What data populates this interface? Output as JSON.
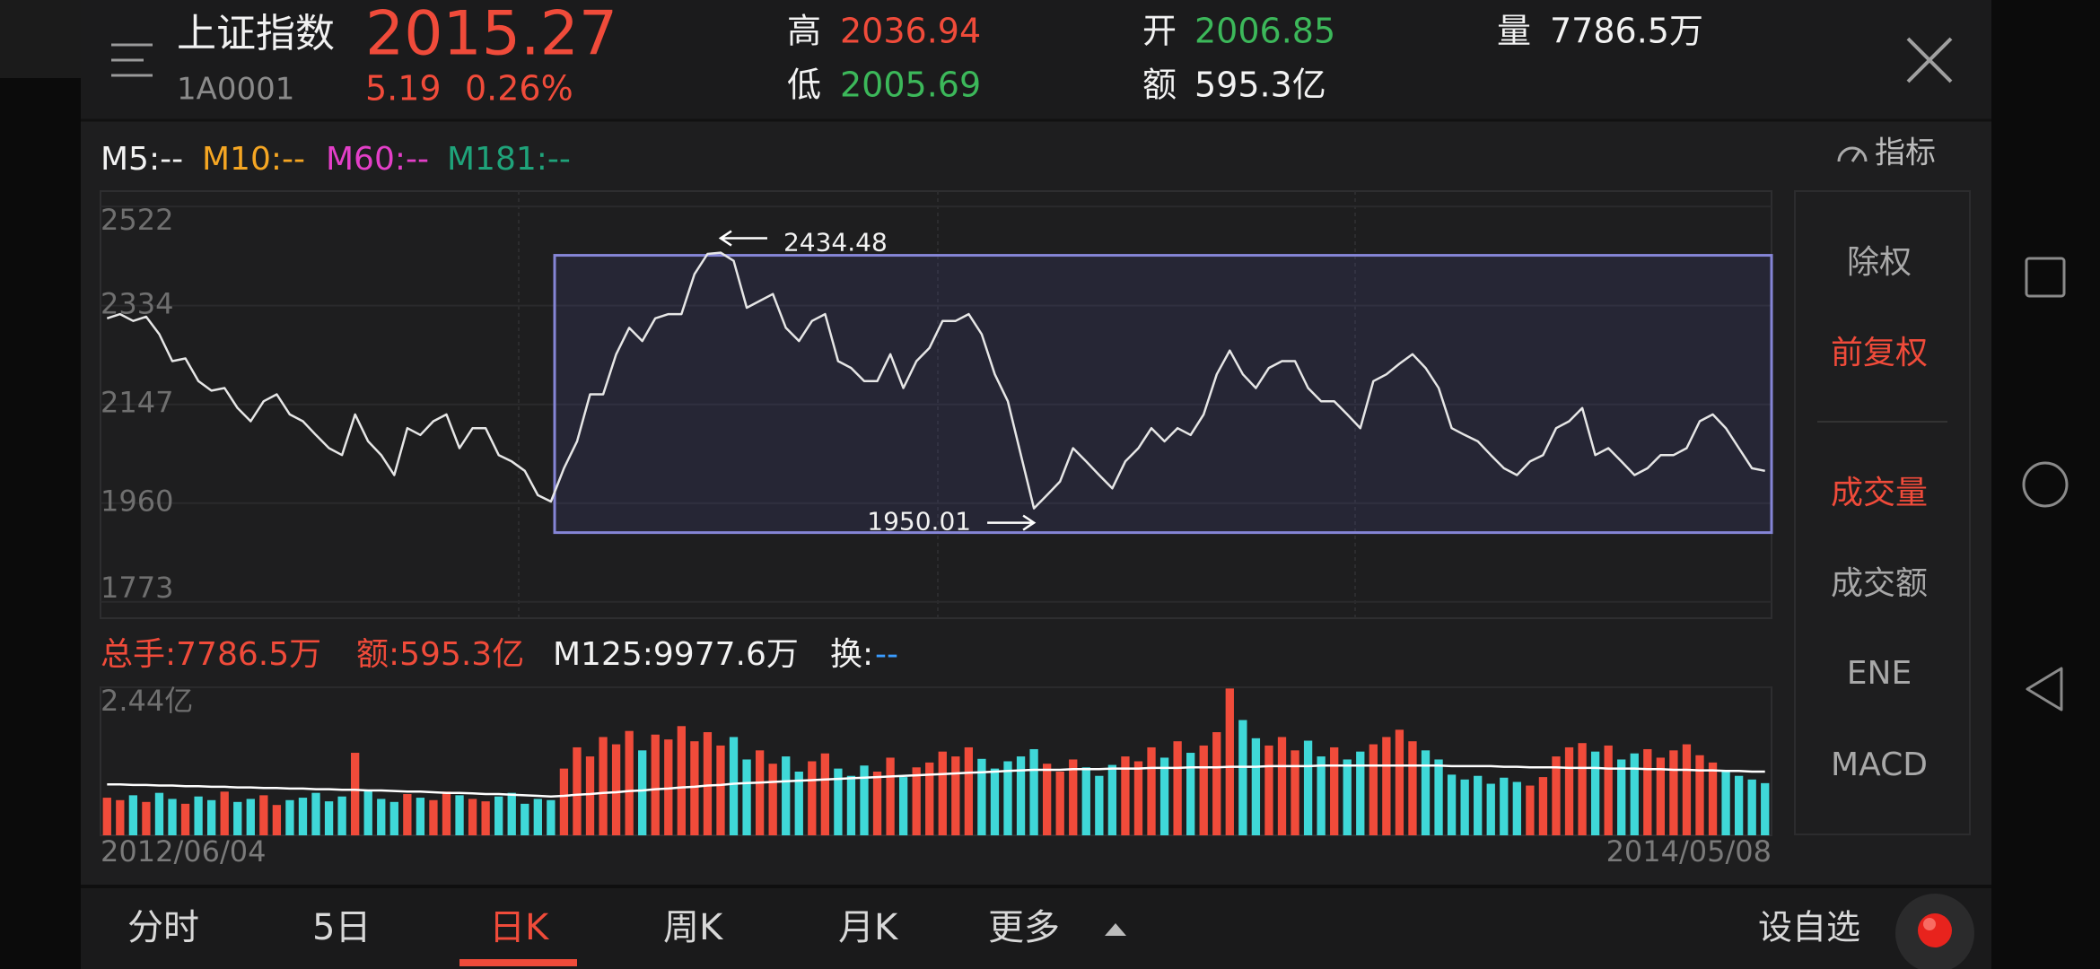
{
  "header": {
    "name": "上证指数",
    "code": "1A0001",
    "price": "2015.27",
    "change": "5.19",
    "change_pct": "0.26%",
    "stats": [
      {
        "label": "高",
        "value": "2036.94"
      },
      {
        "label": "低",
        "value": "2005.69"
      },
      {
        "label": "开",
        "value": "2006.85"
      },
      {
        "label": "额",
        "value": "595.3亿"
      },
      {
        "label": "量",
        "value": "7786.5万"
      }
    ]
  },
  "indicators": [
    "M5:--",
    "M10:--",
    "M60:--",
    "M181:--"
  ],
  "indicator_button": "指标",
  "volume_info": [
    "总手:7786.5万",
    "额:595.3亿",
    "M125:9977.6万",
    "换:",
    "--"
  ],
  "side_menu": [
    "除权",
    "前复权",
    "成交量",
    "成交额",
    "ENE",
    "MACD"
  ],
  "tabs": [
    "分时",
    "5日",
    "日K",
    "周K",
    "月K",
    "更多"
  ],
  "add_watch": "设自选",
  "chart_data": [
    {
      "type": "line",
      "color": "#e6e6e6",
      "ylim": [
        1742,
        2551
      ],
      "yticks": [
        2522,
        2334,
        2147,
        1960,
        1773
      ],
      "grid": true,
      "high_mark": 2434.48,
      "low_mark": 1950.01,
      "values": [
        2310,
        2318,
        2305,
        2313,
        2280,
        2229,
        2234,
        2191,
        2173,
        2178,
        2140,
        2115,
        2153,
        2166,
        2128,
        2115,
        2089,
        2064,
        2051,
        2128,
        2077,
        2051,
        2013,
        2102,
        2089,
        2115,
        2128,
        2064,
        2102,
        2102,
        2051,
        2039,
        2021,
        1975,
        1963,
        2026,
        2077,
        2166,
        2166,
        2242,
        2292,
        2267,
        2310,
        2318,
        2318,
        2394,
        2432,
        2434.48,
        2419,
        2330,
        2343,
        2356,
        2292,
        2267,
        2305,
        2318,
        2229,
        2216,
        2191,
        2191,
        2242,
        2178,
        2229,
        2254,
        2305,
        2305,
        2318,
        2280,
        2204,
        2153,
        2051,
        1950.01,
        1975,
        2001,
        2064,
        2039,
        2013,
        1988,
        2039,
        2064,
        2102,
        2077,
        2102,
        2089,
        2128,
        2204,
        2249,
        2204,
        2178,
        2216,
        2229,
        2229,
        2178,
        2153,
        2153,
        2128,
        2102,
        2191,
        2204,
        2224,
        2242,
        2216,
        2178,
        2102,
        2089,
        2077,
        2051,
        2026,
        2013,
        2039,
        2051,
        2102,
        2115,
        2140,
        2051,
        2064,
        2039,
        2013,
        2026,
        2051,
        2051,
        2064,
        2115,
        2128,
        2102,
        2064,
        2026,
        2021
      ]
    },
    {
      "type": "bar",
      "up_color": "#f04b3a",
      "down_color": "#3fd8d8",
      "ylim": [
        0,
        2.44
      ],
      "yticks": [
        {
          "value": 2.44,
          "label": "2.44亿"
        }
      ],
      "categories": [
        "2012/06/04",
        null,
        null,
        null,
        null,
        null,
        null,
        null,
        null,
        null,
        null,
        null,
        null,
        null,
        null,
        null,
        null,
        null,
        null,
        null,
        null,
        null,
        null,
        null,
        null,
        null,
        null,
        null,
        null,
        null,
        null,
        null,
        null,
        null,
        null,
        null,
        null,
        null,
        null,
        null,
        null,
        null,
        null,
        null,
        null,
        null,
        null,
        null,
        null,
        null,
        null,
        null,
        null,
        null,
        null,
        null,
        null,
        null,
        null,
        null,
        null,
        null,
        null,
        null,
        null,
        null,
        null,
        null,
        null,
        null,
        null,
        null,
        null,
        null,
        null,
        null,
        null,
        null,
        null,
        null,
        null,
        null,
        null,
        null,
        null,
        null,
        null,
        null,
        null,
        null,
        null,
        null,
        null,
        null,
        null,
        null,
        null,
        null,
        null,
        null,
        null,
        null,
        null,
        null,
        null,
        null,
        null,
        null,
        null,
        null,
        null,
        null,
        null,
        null,
        null,
        null,
        null,
        null,
        null,
        null,
        null,
        null,
        null,
        null,
        null,
        null,
        null,
        "2014/05/08"
      ],
      "values": [
        0.62,
        0.58,
        0.66,
        0.55,
        0.7,
        0.6,
        0.52,
        0.64,
        0.58,
        0.72,
        0.55,
        0.6,
        0.66,
        0.5,
        0.58,
        0.62,
        0.7,
        0.56,
        0.64,
        1.36,
        0.74,
        0.6,
        0.55,
        0.68,
        0.62,
        0.58,
        0.72,
        0.66,
        0.6,
        0.56,
        0.64,
        0.7,
        0.52,
        0.6,
        0.58,
        1.1,
        1.45,
        1.3,
        1.62,
        1.5,
        1.72,
        1.4,
        1.66,
        1.58,
        1.8,
        1.55,
        1.7,
        1.48,
        1.62,
        1.25,
        1.4,
        1.18,
        1.3,
        1.05,
        1.22,
        1.35,
        1.1,
        0.98,
        1.15,
        1.05,
        1.28,
        0.96,
        1.12,
        1.2,
        1.38,
        1.3,
        1.45,
        1.26,
        1.1,
        1.22,
        1.3,
        1.42,
        1.18,
        1.05,
        1.25,
        1.12,
        0.98,
        1.16,
        1.3,
        1.22,
        1.45,
        1.28,
        1.55,
        1.36,
        1.48,
        1.7,
        2.42,
        1.9,
        1.6,
        1.48,
        1.62,
        1.4,
        1.56,
        1.3,
        1.45,
        1.25,
        1.38,
        1.5,
        1.62,
        1.74,
        1.55,
        1.4,
        1.25,
        1.0,
        0.92,
        0.98,
        0.85,
        0.95,
        0.88,
        0.82,
        0.96,
        1.3,
        1.45,
        1.52,
        1.38,
        1.48,
        1.25,
        1.35,
        1.42,
        1.28,
        1.4,
        1.5,
        1.32,
        1.2,
        1.05,
        0.98,
        0.92,
        0.86
      ],
      "ma": {
        "color": "#ffffff",
        "values": [
          0.84,
          0.84,
          0.83,
          0.83,
          0.82,
          0.82,
          0.81,
          0.81,
          0.8,
          0.8,
          0.79,
          0.79,
          0.78,
          0.78,
          0.77,
          0.77,
          0.76,
          0.76,
          0.75,
          0.75,
          0.74,
          0.74,
          0.73,
          0.72,
          0.72,
          0.71,
          0.7,
          0.7,
          0.69,
          0.68,
          0.68,
          0.67,
          0.66,
          0.65,
          0.64,
          0.65,
          0.67,
          0.68,
          0.7,
          0.71,
          0.73,
          0.74,
          0.76,
          0.77,
          0.79,
          0.8,
          0.82,
          0.83,
          0.85,
          0.86,
          0.87,
          0.88,
          0.89,
          0.9,
          0.91,
          0.92,
          0.93,
          0.94,
          0.95,
          0.96,
          0.97,
          0.98,
          0.99,
          1.0,
          1.01,
          1.02,
          1.03,
          1.04,
          1.05,
          1.06,
          1.07,
          1.08,
          1.08,
          1.08,
          1.09,
          1.09,
          1.09,
          1.1,
          1.1,
          1.1,
          1.11,
          1.11,
          1.11,
          1.12,
          1.12,
          1.12,
          1.13,
          1.13,
          1.13,
          1.14,
          1.14,
          1.14,
          1.14,
          1.15,
          1.15,
          1.15,
          1.15,
          1.15,
          1.15,
          1.15,
          1.15,
          1.15,
          1.15,
          1.14,
          1.14,
          1.14,
          1.14,
          1.13,
          1.13,
          1.12,
          1.12,
          1.12,
          1.11,
          1.11,
          1.11,
          1.1,
          1.1,
          1.1,
          1.09,
          1.09,
          1.08,
          1.08,
          1.07,
          1.07,
          1.06,
          1.06,
          1.05,
          1.05
        ]
      }
    }
  ]
}
